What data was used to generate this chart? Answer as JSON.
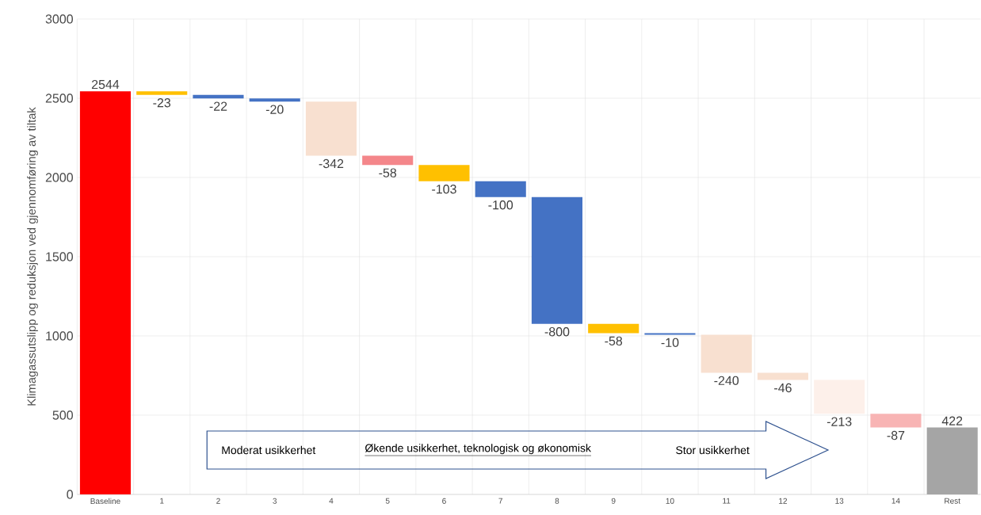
{
  "chart_data": {
    "type": "bar",
    "ylabel": "Klimagassutslipp og reduksjon ved gjennomføring av tiltak",
    "categories": [
      "Baseline",
      "1",
      "2",
      "3",
      "4",
      "5",
      "6",
      "7",
      "8",
      "9",
      "10",
      "11",
      "12",
      "13",
      "14",
      "Rest"
    ],
    "values": [
      2544,
      -23,
      -22,
      -20,
      -342,
      -58,
      -103,
      -100,
      -800,
      -58,
      -10,
      -240,
      -46,
      -213,
      -87,
      422
    ],
    "base": [
      0,
      2544,
      2521,
      2499,
      2479,
      2137,
      2079,
      1976,
      1876,
      1076,
      1018,
      1008,
      768,
      722,
      509,
      0
    ],
    "colors": [
      "#ff0000",
      "#ffc000",
      "#4472c4",
      "#4472c4",
      "#f8e0d0",
      "#f4868a",
      "#ffc000",
      "#4472c4",
      "#4472c4",
      "#ffc000",
      "#4472c4",
      "#f8e0d0",
      "#f8e0d0",
      "#fdf0ea",
      "#f8b4b4",
      "#a5a5a5"
    ],
    "data_labels": true,
    "ylim": [
      0,
      3000
    ],
    "yticks": [
      0,
      500,
      1000,
      1500,
      2000,
      2500,
      3000
    ],
    "grid": true,
    "annotations": [
      "Moderat usikkerhet",
      "Økende usikkerhet, teknologisk og økonomisk",
      "Stor usikkerhet"
    ]
  }
}
